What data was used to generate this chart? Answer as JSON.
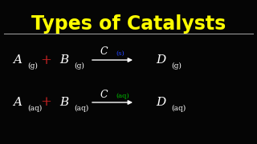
{
  "title": "Types of Catalysts",
  "title_color": "#FFFF00",
  "title_fontsize": 17,
  "background_color": "#050505",
  "line_color": "#999999",
  "row1": {
    "A": "A",
    "A_sub": "(g)",
    "plus_color": "#CC2222",
    "B": "B",
    "B_sub": "(g)",
    "catalyst": "C",
    "cat_sub": "(s)",
    "cat_sub_color": "#2244FF",
    "D": "D",
    "D_sub": "(g)"
  },
  "row2": {
    "A": "A",
    "A_sub": "(aq)",
    "plus_color": "#CC2222",
    "B": "B",
    "B_sub": "(aq)",
    "catalyst": "C",
    "cat_sub": "(aq)",
    "cat_sub_color": "#00BB00",
    "D": "D",
    "D_sub": "(aq)"
  },
  "fs_main": 11,
  "fs_sub": 6.5,
  "fs_catalyst": 9,
  "fs_cat_sub": 6
}
